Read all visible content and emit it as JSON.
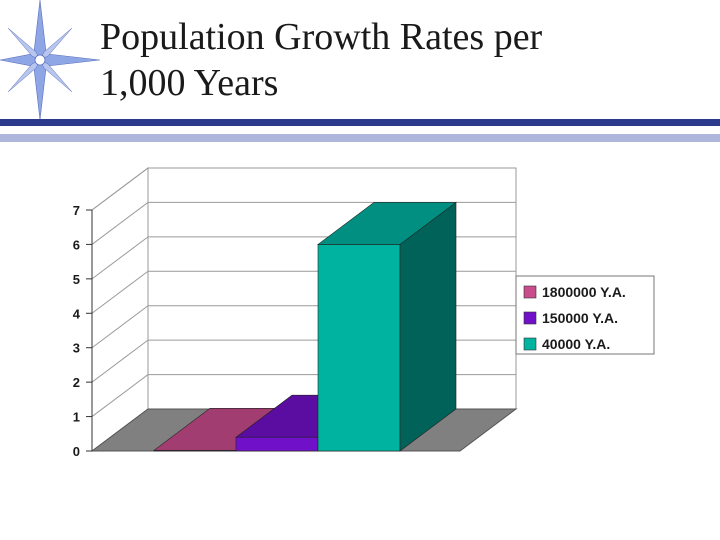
{
  "slide": {
    "title_line1": "Population Growth Rates per",
    "title_line2": "1,000 Years"
  },
  "colors": {
    "rule_dark": "#2b3a8c",
    "rule_light": "#aeb6dc",
    "star": "#8fa6e6"
  },
  "chart_data": {
    "type": "bar",
    "title": "",
    "xlabel": "",
    "ylabel": "",
    "ylim": [
      0,
      7
    ],
    "yticks": [
      "0",
      "1",
      "2",
      "3",
      "4",
      "5",
      "6",
      "7"
    ],
    "legend_position": "right",
    "series": [
      {
        "name": "1800000 Y.A.",
        "value": 0.02,
        "color": "#c94c8c"
      },
      {
        "name": "150000 Y.A.",
        "value": 0.4,
        "color": "#7010c8"
      },
      {
        "name": "40000 Y.A.",
        "value": 6.0,
        "color": "#00b3a0"
      }
    ]
  }
}
